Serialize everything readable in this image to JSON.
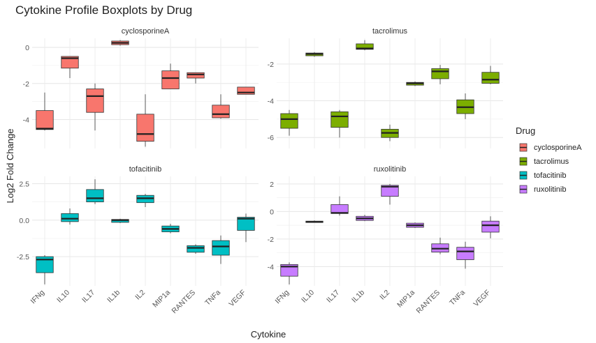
{
  "chart_data": {
    "type": "boxplot",
    "title": "Cytokine Profile Boxplots by Drug",
    "xlabel": "Cytokine",
    "ylabel": "Log2 Fold Change",
    "categories": [
      "IFNg",
      "IL10",
      "IL17",
      "IL1b",
      "IL2",
      "MIP1a",
      "RANTES",
      "TNFa",
      "VEGF"
    ],
    "legend": {
      "title": "Drug",
      "position": "right",
      "entries": [
        {
          "name": "cyclosporineA",
          "color": "#F8766D"
        },
        {
          "name": "tacrolimus",
          "color": "#7CAE00"
        },
        {
          "name": "tofacitinib",
          "color": "#00BFC4"
        },
        {
          "name": "ruxolitinib",
          "color": "#C77CFF"
        }
      ]
    },
    "grid": true,
    "panels": [
      {
        "name": "cyclosporineA",
        "color": "#F8766D",
        "ylim": [
          -5.6,
          0.5
        ],
        "yticks": [
          0,
          -2,
          -4
        ],
        "boxes": [
          {
            "category": "IFNg",
            "min": -4.6,
            "q1": -4.55,
            "median": -4.5,
            "q3": -3.5,
            "max": -2.5
          },
          {
            "category": "IL10",
            "min": -1.7,
            "q1": -1.15,
            "median": -0.6,
            "q3": -0.5,
            "max": -0.5
          },
          {
            "category": "IL17",
            "min": -4.6,
            "q1": -3.6,
            "median": -2.7,
            "q3": -2.3,
            "max": -2.0
          },
          {
            "category": "IL1b",
            "min": 0.1,
            "q1": 0.15,
            "median": 0.25,
            "q3": 0.35,
            "max": 0.4
          },
          {
            "category": "IL2",
            "min": -5.5,
            "q1": -5.2,
            "median": -4.8,
            "q3": -3.7,
            "max": -2.6
          },
          {
            "category": "MIP1a",
            "min": -2.3,
            "q1": -2.3,
            "median": -1.7,
            "q3": -1.3,
            "max": -0.9
          },
          {
            "category": "RANTES",
            "min": -2.0,
            "q1": -1.7,
            "median": -1.5,
            "q3": -1.4,
            "max": -1.4
          },
          {
            "category": "TNFa",
            "min": -3.95,
            "q1": -3.9,
            "median": -3.7,
            "q3": -3.2,
            "max": -2.6
          },
          {
            "category": "VEGF",
            "min": -2.6,
            "q1": -2.6,
            "median": -2.5,
            "q3": -2.2,
            "max": -2.2
          }
        ]
      },
      {
        "name": "tacrolimus",
        "color": "#7CAE00",
        "ylim": [
          -6.6,
          -0.6
        ],
        "yticks": [
          -2,
          -4,
          -6
        ],
        "boxes": [
          {
            "category": "IFNg",
            "min": -5.9,
            "q1": -5.5,
            "median": -5.0,
            "q3": -4.7,
            "max": -4.5
          },
          {
            "category": "IL10",
            "min": -1.6,
            "q1": -1.55,
            "median": -1.45,
            "q3": -1.4,
            "max": -1.35
          },
          {
            "category": "IL17",
            "min": -6.0,
            "q1": -5.45,
            "median": -4.85,
            "q3": -4.6,
            "max": -4.5
          },
          {
            "category": "IL1b",
            "min": -1.25,
            "q1": -1.2,
            "median": -1.15,
            "q3": -0.9,
            "max": -0.7
          },
          {
            "category": "IL2",
            "min": -6.2,
            "q1": -6.0,
            "median": -5.75,
            "q3": -5.55,
            "max": -5.3
          },
          {
            "category": "MIP1a",
            "min": -3.2,
            "q1": -3.15,
            "median": -3.05,
            "q3": -3.0,
            "max": -2.95
          },
          {
            "category": "RANTES",
            "min": -3.1,
            "q1": -2.8,
            "median": -2.4,
            "q3": -2.25,
            "max": -2.05
          },
          {
            "category": "TNFa",
            "min": -5.0,
            "q1": -4.7,
            "median": -4.35,
            "q3": -3.95,
            "max": -3.6
          },
          {
            "category": "VEGF",
            "min": -3.1,
            "q1": -3.05,
            "median": -2.85,
            "q3": -2.45,
            "max": -2.1
          }
        ]
      },
      {
        "name": "tofacitinib",
        "color": "#00BFC4",
        "ylim": [
          -4.5,
          3.0
        ],
        "yticks": [
          2.5,
          0.0,
          -2.5
        ],
        "boxes": [
          {
            "category": "IFNg",
            "min": -4.4,
            "q1": -3.6,
            "median": -2.7,
            "q3": -2.5,
            "max": -2.4
          },
          {
            "category": "IL10",
            "min": -0.3,
            "q1": -0.1,
            "median": 0.1,
            "q3": 0.45,
            "max": 0.8
          },
          {
            "category": "IL17",
            "min": 1.1,
            "q1": 1.25,
            "median": 1.5,
            "q3": 2.1,
            "max": 2.8
          },
          {
            "category": "IL1b",
            "min": -0.2,
            "q1": -0.15,
            "median": 0.0,
            "q3": 0.05,
            "max": 0.1
          },
          {
            "category": "IL2",
            "min": 0.9,
            "q1": 1.2,
            "median": 1.5,
            "q3": 1.7,
            "max": 1.8
          },
          {
            "category": "MIP1a",
            "min": -0.9,
            "q1": -0.8,
            "median": -0.6,
            "q3": -0.4,
            "max": -0.25
          },
          {
            "category": "RANTES",
            "min": -2.3,
            "q1": -2.2,
            "median": -1.9,
            "q3": -1.75,
            "max": -1.65
          },
          {
            "category": "TNFa",
            "min": -3.0,
            "q1": -2.4,
            "median": -1.8,
            "q3": -1.4,
            "max": -1.05
          },
          {
            "category": "VEGF",
            "min": -1.5,
            "q1": -0.7,
            "median": 0.1,
            "q3": 0.2,
            "max": 0.45
          }
        ]
      },
      {
        "name": "ruxolitinib",
        "color": "#C77CFF",
        "ylim": [
          -5.4,
          2.55
        ],
        "yticks": [
          2,
          0,
          -2,
          -4
        ],
        "boxes": [
          {
            "category": "IFNg",
            "min": -5.3,
            "q1": -4.7,
            "median": -4.0,
            "q3": -3.85,
            "max": -3.7
          },
          {
            "category": "IL10",
            "min": -0.8,
            "q1": -0.8,
            "median": -0.75,
            "q3": -0.7,
            "max": -0.65
          },
          {
            "category": "IL17",
            "min": -0.3,
            "q1": -0.15,
            "median": -0.1,
            "q3": 0.5,
            "max": 1.1
          },
          {
            "category": "IL1b",
            "min": -0.7,
            "q1": -0.65,
            "median": -0.5,
            "q3": -0.35,
            "max": -0.25
          },
          {
            "category": "IL2",
            "min": 0.5,
            "q1": 1.1,
            "median": 1.8,
            "q3": 1.9,
            "max": 2.0
          },
          {
            "category": "MIP1a",
            "min": -1.2,
            "q1": -1.15,
            "median": -1.0,
            "q3": -0.85,
            "max": -0.8
          },
          {
            "category": "RANTES",
            "min": -3.1,
            "q1": -2.95,
            "median": -2.7,
            "q3": -2.35,
            "max": -1.9
          },
          {
            "category": "TNFa",
            "min": -4.15,
            "q1": -3.5,
            "median": -2.9,
            "q3": -2.6,
            "max": -2.2
          },
          {
            "category": "VEGF",
            "min": -1.95,
            "q1": -1.5,
            "median": -1.0,
            "q3": -0.7,
            "max": -0.35
          }
        ]
      }
    ]
  }
}
